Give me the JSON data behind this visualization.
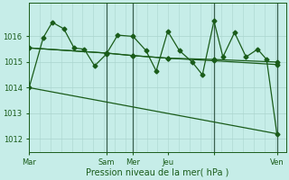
{
  "title": "Pression niveau de la mer( hPa )",
  "bg_color": "#c6ede8",
  "grid_color_minor": "#aad4ce",
  "grid_color_major": "#aad4ce",
  "vline_color": "#3a6050",
  "line_color": "#1a5c1a",
  "ylim": [
    1011.5,
    1017.3
  ],
  "yticks": [
    1012,
    1013,
    1014,
    1015,
    1016
  ],
  "xlim": [
    0,
    1.0
  ],
  "xtick_positions": [
    0.0,
    0.3,
    0.405,
    0.54,
    0.72,
    0.965
  ],
  "xtick_labels": [
    "Mar",
    "Sam",
    "Mer",
    "Jeu",
    "",
    "Ven"
  ],
  "vline_positions": [
    0.3,
    0.405,
    0.72,
    0.965
  ],
  "series1_x": [
    0.0,
    0.055,
    0.09,
    0.135,
    0.175,
    0.215,
    0.255,
    0.3,
    0.345,
    0.405,
    0.455,
    0.495,
    0.54,
    0.585,
    0.635,
    0.675,
    0.72,
    0.755,
    0.8,
    0.845,
    0.89,
    0.925,
    0.965
  ],
  "series1_y": [
    1014.0,
    1015.95,
    1016.55,
    1016.3,
    1015.55,
    1015.5,
    1014.85,
    1015.3,
    1016.05,
    1016.0,
    1015.45,
    1014.65,
    1016.2,
    1015.45,
    1015.0,
    1014.5,
    1016.6,
    1015.2,
    1016.15,
    1015.2,
    1015.5,
    1015.1,
    1012.2
  ],
  "series2_x": [
    0.0,
    0.3,
    0.405,
    0.54,
    0.72,
    0.965
  ],
  "series2_y": [
    1015.55,
    1015.35,
    1015.25,
    1015.15,
    1015.05,
    1014.9
  ],
  "series3_x": [
    0.0,
    0.3,
    0.405,
    0.54,
    0.72,
    0.965
  ],
  "series3_y": [
    1015.55,
    1015.35,
    1015.25,
    1015.15,
    1015.1,
    1015.0
  ],
  "series4_x": [
    0.0,
    0.965
  ],
  "series4_y": [
    1014.0,
    1012.2
  ],
  "marker": "D",
  "markersize": 2.5,
  "linewidth": 0.9
}
